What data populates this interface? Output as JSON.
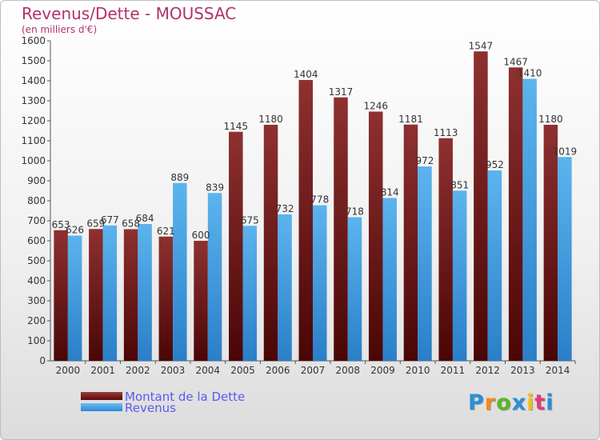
{
  "chart_data": {
    "type": "bar",
    "title": "Revenus/Dette - MOUSSAC",
    "subtitle": "(en milliers d'€)",
    "categories": [
      "2000",
      "2001",
      "2002",
      "2003",
      "2004",
      "2005",
      "2006",
      "2007",
      "2008",
      "2009",
      "2010",
      "2011",
      "2012",
      "2013",
      "2014"
    ],
    "series": [
      {
        "name": "Montant de la Dette",
        "color": "#7a1a1a",
        "values": [
          653,
          659,
          658,
          621,
          600,
          1145,
          1180,
          1404,
          1317,
          1246,
          1181,
          1113,
          1547,
          1467,
          1180
        ]
      },
      {
        "name": "Revenus",
        "color": "#4aa8e8",
        "values": [
          626,
          677,
          684,
          889,
          839,
          675,
          732,
          778,
          718,
          814,
          972,
          851,
          952,
          1410,
          1019
        ]
      }
    ],
    "ylim": [
      0,
      1600
    ],
    "ytick_step": 100,
    "grid": false,
    "legend_position": "bottom-left"
  },
  "logo": {
    "letters": [
      "P",
      "r",
      "o",
      "x",
      "i",
      "t",
      "i"
    ],
    "colors": [
      "#2a8fd8",
      "#f08a18",
      "#58b62a",
      "#2a8fd8",
      "#f0c018",
      "#e03a7a",
      "#2a8fd8"
    ]
  }
}
